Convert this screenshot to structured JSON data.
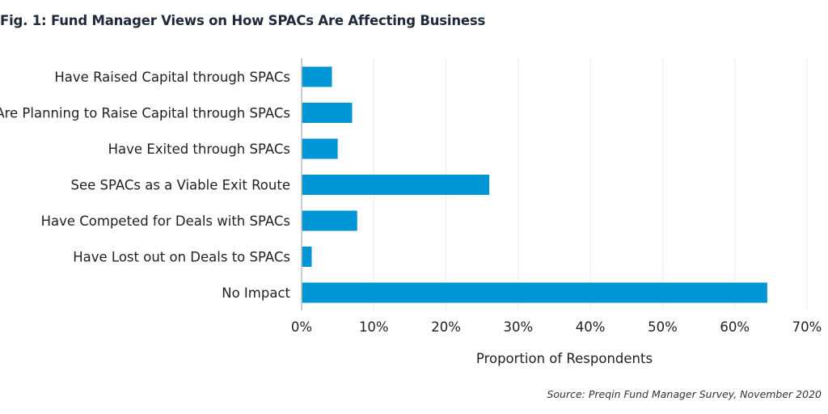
{
  "figure": {
    "title": "Fig. 1: Fund Manager Views on How SPACs Are Affecting Business",
    "source": "Source: Preqin Fund Manager Survey, November 2020"
  },
  "colors": {
    "bar": "#0096d6",
    "grid": "#ececec",
    "axis": "#bdbdbd",
    "text": "#222222"
  },
  "chart_data": {
    "type": "bar",
    "orientation": "horizontal",
    "title": "Fig. 1: Fund Manager Views on How SPACs Are Affecting Business",
    "xlabel": "Proportion of Respondents",
    "ylabel": "",
    "categories": [
      "Have Raised Capital through SPACs",
      "Are Planning to Raise Capital through SPACs",
      "Have Exited through SPACs",
      "See SPACs as a Viable Exit Route",
      "Have Competed for Deals with SPACs",
      "Have Lost out on Deals to SPACs",
      "No Impact"
    ],
    "values": [
      4.2,
      7.0,
      5.0,
      26.0,
      7.7,
      1.4,
      64.5
    ],
    "unit": "%",
    "xlim": [
      0,
      70
    ],
    "ticks": [
      0,
      10,
      20,
      30,
      40,
      50,
      60,
      70
    ],
    "tick_labels": [
      "0%",
      "10%",
      "20%",
      "30%",
      "40%",
      "50%",
      "60%",
      "70%"
    ],
    "grid": true
  }
}
